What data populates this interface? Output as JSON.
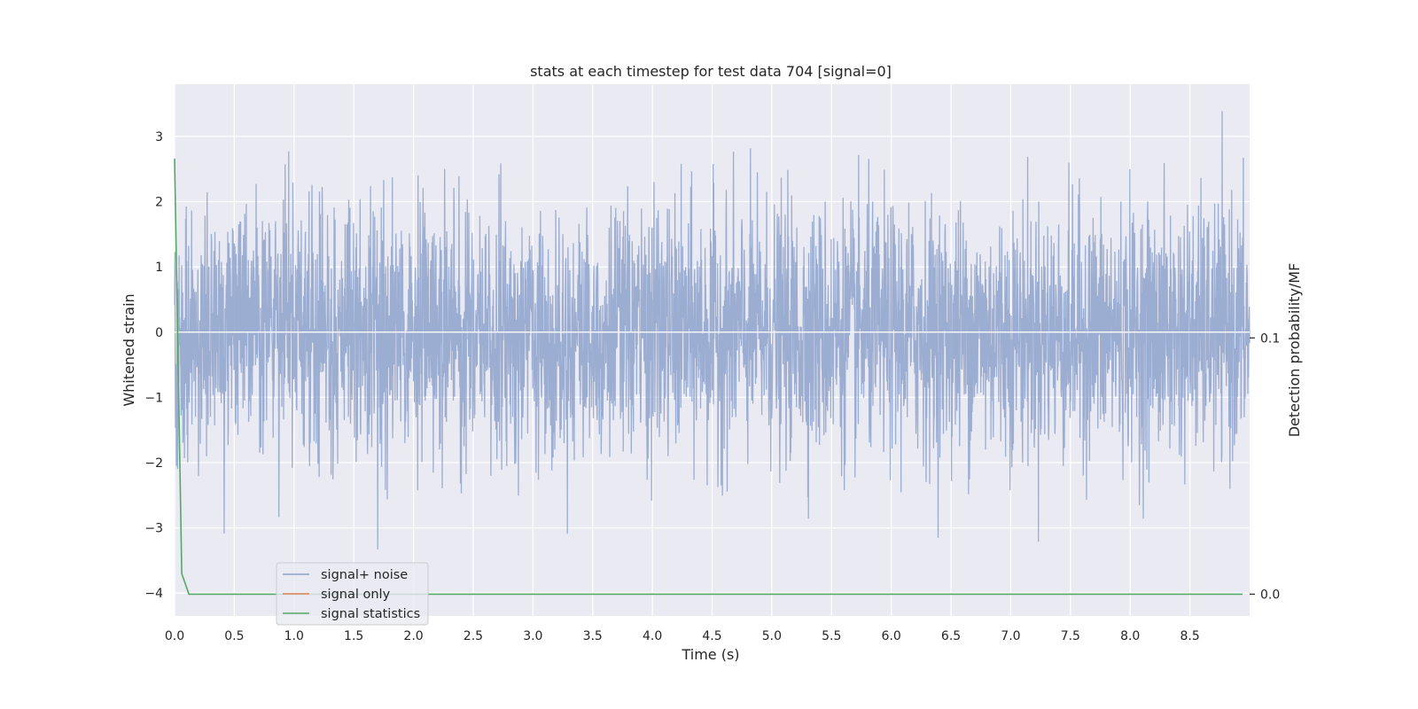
{
  "chart_data": {
    "type": "line",
    "title": "stats at each timestep for test data 704 [signal=0]",
    "xlabel": "Time (s)",
    "ylabel": "Whitened strain",
    "ylabel_right": "Detection probability/MF",
    "xlim": [
      0.0,
      9.0
    ],
    "ylim": [
      -4.35,
      3.8
    ],
    "ylim_right": [
      -0.0085,
      0.199
    ],
    "xticks": [
      0.0,
      0.5,
      1.0,
      1.5,
      2.0,
      2.5,
      3.0,
      3.5,
      4.0,
      4.5,
      5.0,
      5.5,
      6.0,
      6.5,
      7.0,
      7.5,
      8.0,
      8.5
    ],
    "xtick_labels": [
      "0.0",
      "0.5",
      "1.0",
      "1.5",
      "2.0",
      "2.5",
      "3.0",
      "3.5",
      "4.0",
      "4.5",
      "5.0",
      "5.5",
      "6.0",
      "6.5",
      "7.0",
      "7.5",
      "8.0",
      "8.5"
    ],
    "yticks": [
      -4,
      -3,
      -2,
      -1,
      0,
      1,
      2,
      3
    ],
    "ytick_labels": [
      "−4",
      "−3",
      "−2",
      "−1",
      "0",
      "1",
      "2",
      "3"
    ],
    "yticks_right": [
      0.0,
      0.1
    ],
    "ytick_labels_right": [
      "0.0",
      "0.1"
    ],
    "grid": true,
    "legend_position": "lower-left",
    "series": [
      {
        "name": "signal+ noise",
        "color": "#8ea2cd",
        "axis": "left",
        "kind": "noise",
        "x_range": [
          0.0,
          9.0
        ],
        "std": 0.95,
        "max": 3.5,
        "min": -3.65
      },
      {
        "name": "signal only",
        "color": "#dd8452",
        "axis": "left",
        "x": [
          0.0,
          9.0
        ],
        "y": [
          0.0,
          0.0
        ]
      },
      {
        "name": "signal statistics",
        "color": "#55a868",
        "axis": "right",
        "x": [
          0.0,
          0.06,
          0.12,
          0.5,
          1.0,
          2.0,
          3.0,
          4.0,
          5.0,
          6.0,
          7.0,
          8.0,
          8.94
        ],
        "y": [
          0.17,
          0.008,
          0.0,
          0.0,
          0.0,
          0.0,
          0.0,
          0.0,
          0.0,
          0.0,
          0.0,
          0.0,
          0.0
        ]
      }
    ]
  }
}
